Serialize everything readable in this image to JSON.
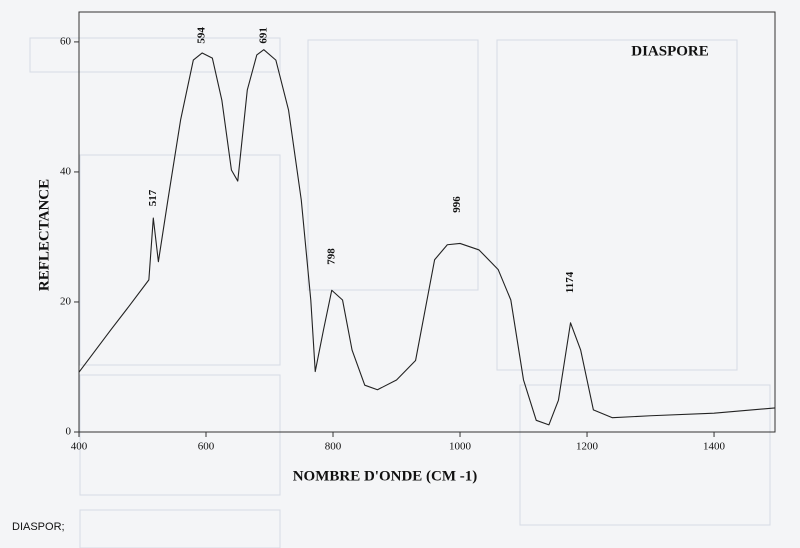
{
  "chart_data": {
    "type": "line",
    "title": "DIASPORE",
    "x_label": "NOMBRE D'ONDE (CM -1)",
    "y_label": "REFLECTANCE",
    "footnote": "DIASPOR;",
    "x": [
      400,
      420,
      450,
      480,
      510,
      517,
      525,
      540,
      560,
      580,
      594,
      610,
      625,
      640,
      650,
      665,
      680,
      691,
      710,
      730,
      750,
      765,
      772,
      785,
      798,
      815,
      830,
      850,
      870,
      900,
      930,
      960,
      980,
      1000,
      1030,
      1060,
      1080,
      1100,
      1120,
      1140,
      1155,
      1174,
      1190,
      1210,
      1240,
      1300,
      1400,
      1496
    ],
    "series": [
      {
        "name": "DIASPORE",
        "color": "#222222",
        "values": [
          9.2,
          11.8,
          15.7,
          19.5,
          23.4,
          32.9,
          26.2,
          35.7,
          48,
          57.2,
          58.3,
          57.5,
          51,
          40.3,
          38.6,
          52.6,
          58,
          58.8,
          57.2,
          49.5,
          35.7,
          20.3,
          9.3,
          15.7,
          21.8,
          20.3,
          12.6,
          7.2,
          6.5,
          8,
          11,
          26.5,
          28.8,
          29,
          28,
          25,
          20.3,
          8,
          1.8,
          1.1,
          4.9,
          16.8,
          12.6,
          3.4,
          2.2,
          2.5,
          2.9,
          3.7
        ]
      }
    ],
    "annotations": [
      {
        "text": "517",
        "x": 517,
        "y": 36
      },
      {
        "text": "594",
        "x": 594,
        "y": 61
      },
      {
        "text": "691",
        "x": 691,
        "y": 61
      },
      {
        "text": "798",
        "x": 798,
        "y": 27
      },
      {
        "text": "996",
        "x": 996,
        "y": 35
      },
      {
        "text": "1174",
        "x": 1174,
        "y": 23
      }
    ],
    "xlim": [
      400,
      1496
    ],
    "ylim": [
      0,
      64.6
    ],
    "xticks": [
      400,
      600,
      800,
      1000,
      1200,
      1400
    ],
    "yticks": [
      0,
      20,
      40,
      60
    ]
  }
}
